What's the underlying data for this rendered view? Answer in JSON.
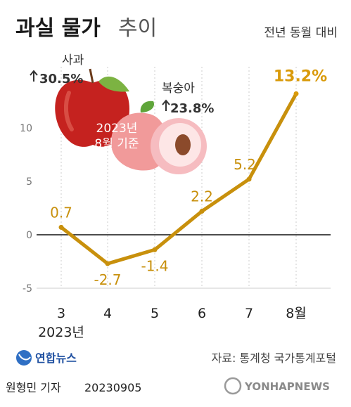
{
  "header": {
    "title_bold": "과실 물가",
    "title_light": "추이",
    "subtitle": "전년 동월 대비"
  },
  "annotations": {
    "apple": {
      "name": "사과",
      "change": "30.5%"
    },
    "peach": {
      "name": "복숭아",
      "change": "23.8%"
    },
    "base_line1": "2023년",
    "base_line2": "8월 기준"
  },
  "footer": {
    "year_label": "2023년",
    "logo": "연합뉴스",
    "source": "자료: 통계청 국가통계포털",
    "reporter": "원형민 기자",
    "date": "20230905",
    "watermark": "YONHAPNEWS"
  },
  "chart_data": {
    "type": "line",
    "categories": [
      "3",
      "4",
      "5",
      "6",
      "7",
      "8월"
    ],
    "values": [
      0.7,
      -2.7,
      -1.4,
      2.2,
      5.2,
      13.2
    ],
    "data_labels": [
      "0.7",
      "-2.7",
      "-1.4",
      "2.2",
      "5.2",
      "13.2%"
    ],
    "y_ticks": [
      "10",
      "5",
      "0",
      "-5"
    ],
    "y_tick_values": [
      10,
      5,
      0,
      -5
    ],
    "ylim": [
      -5,
      15
    ],
    "grid": "vertical dotted",
    "colors": {
      "line": "#c8900c",
      "highlight": "#d99a0a",
      "zero_line": "#111111",
      "grid": "#cccccc"
    }
  }
}
